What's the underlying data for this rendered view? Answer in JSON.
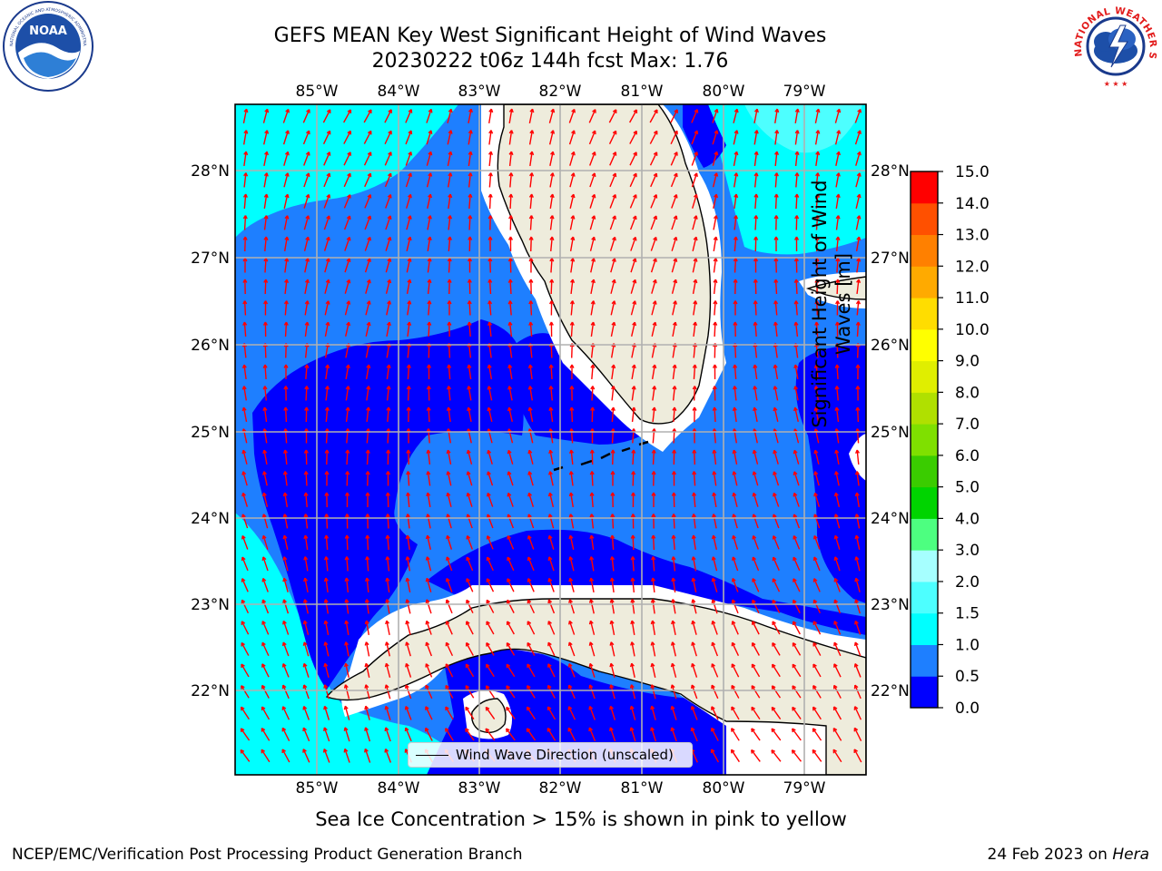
{
  "header": {
    "title_line1": "GEFS MEAN Key West Significant Height of Wind Waves",
    "title_line2": "20230222 t06z 144h fcst   Max: 1.76"
  },
  "logos": {
    "left": "NOAA",
    "left_ring_text": "NATIONAL OCEANIC AND ATMOSPHERIC ADMINISTRATION · U.S. DEPARTMENT OF COMMERCE",
    "right_ring_text": "NATIONAL WEATHER SERVICE"
  },
  "map": {
    "lon_labels": [
      "85°W",
      "84°W",
      "83°W",
      "82°W",
      "81°W",
      "80°W",
      "79°W"
    ],
    "lat_labels": [
      "28°N",
      "27°N",
      "26°N",
      "25°N",
      "24°N",
      "23°N",
      "22°N"
    ],
    "legend_label": "Wind Wave Direction (unscaled)",
    "land_color": "#eeecdc",
    "arrow_color": "#ff0000"
  },
  "colorbar": {
    "label": "Significant Height of Wind Waves [m]",
    "ticks": [
      "0.0",
      "0.5",
      "1.0",
      "1.5",
      "2.0",
      "3.0",
      "4.0",
      "5.0",
      "6.0",
      "7.0",
      "8.0",
      "9.0",
      "10.0",
      "11.0",
      "12.0",
      "13.0",
      "14.0",
      "15.0"
    ],
    "colors": [
      "#0000ff",
      "#1e7fff",
      "#00ffff",
      "#4dffff",
      "#a6ffff",
      "#4dff80",
      "#00d400",
      "#3acc00",
      "#7fe000",
      "#b0e000",
      "#e0ee00",
      "#ffff00",
      "#ffdd00",
      "#ffaa00",
      "#ff8000",
      "#ff5000",
      "#ff0000"
    ]
  },
  "footer": {
    "footnote": "Sea Ice Concentration > 15% is shown in pink to yellow",
    "credit_left": "NCEP/EMC/Verification Post Processing Product Generation Branch",
    "credit_right_prefix": "24 Feb 2023 on ",
    "credit_right_host": "Hera"
  }
}
